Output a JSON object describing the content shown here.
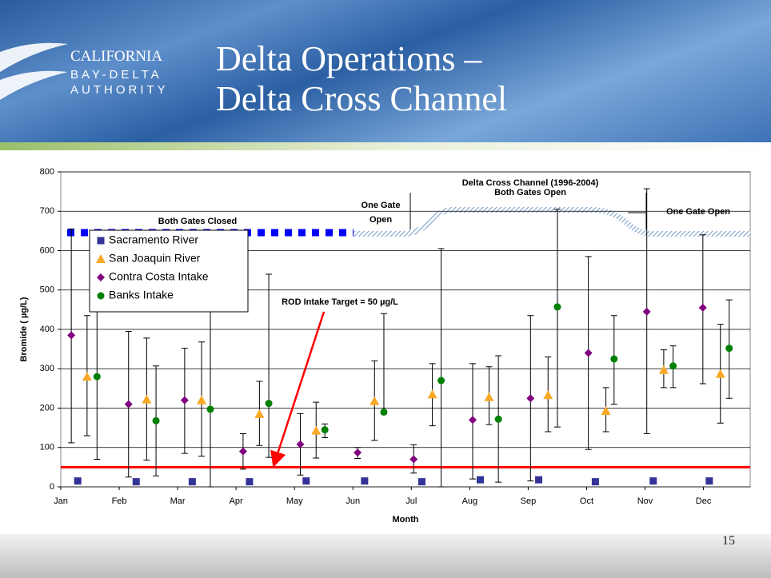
{
  "header": {
    "title_lines": [
      "Delta Operations –",
      "Delta Cross Channel"
    ],
    "logo": [
      "CALIFORNIA",
      "BAY-DELTA",
      "AUTHORITY"
    ]
  },
  "page_number": "15",
  "chart_data": {
    "type": "scatter",
    "xlabel": "Month",
    "ylabel": "Bromide ( µg/L)",
    "xlim": [
      0,
      11.8
    ],
    "ylim": [
      0,
      800
    ],
    "xticks": [
      {
        "value": 0,
        "label": "Jan"
      },
      {
        "value": 1,
        "label": "Feb"
      },
      {
        "value": 2,
        "label": "Mar"
      },
      {
        "value": 3,
        "label": "Apr"
      },
      {
        "value": 4,
        "label": "May"
      },
      {
        "value": 5,
        "label": "Jun"
      },
      {
        "value": 6,
        "label": "Jul"
      },
      {
        "value": 7,
        "label": "Aug"
      },
      {
        "value": 8,
        "label": "Sep"
      },
      {
        "value": 9,
        "label": "Oct"
      },
      {
        "value": 10,
        "label": "Nov"
      },
      {
        "value": 11,
        "label": "Dec"
      }
    ],
    "yticks": [
      0,
      100,
      200,
      300,
      400,
      500,
      600,
      700,
      800
    ],
    "grid": true,
    "series": [
      {
        "name": "Sacramento River",
        "color": "#333399",
        "marker": "square",
        "x": [
          0.29,
          1.29,
          2.25,
          3.23,
          4.2,
          5.2,
          6.18,
          7.18,
          8.18,
          9.15,
          10.14,
          11.1
        ],
        "values": [
          15,
          13,
          13,
          13,
          15,
          15,
          13,
          18,
          18,
          13,
          15,
          15
        ]
      },
      {
        "name": "San Joaquin River",
        "color": "#f9a825",
        "marker": "triangle",
        "x": [
          0.45,
          1.47,
          2.41,
          3.4,
          4.37,
          5.37,
          6.36,
          7.33,
          8.34,
          9.33,
          10.32,
          11.29
        ],
        "values": [
          280,
          222,
          220,
          185,
          143,
          218,
          235,
          228,
          233,
          193,
          297,
          287
        ],
        "low": [
          130,
          68,
          78,
          105,
          73,
          118,
          155,
          158,
          140,
          140,
          252,
          162
        ],
        "high": [
          435,
          378,
          368,
          268,
          215,
          320,
          313,
          305,
          330,
          252,
          348,
          413
        ]
      },
      {
        "name": "Contra Costa Intake",
        "color": "#800080",
        "marker": "diamond",
        "x": [
          0.18,
          1.16,
          2.12,
          3.12,
          4.1,
          5.08,
          6.04,
          7.05,
          8.04,
          9.03,
          10.03,
          10.99
        ],
        "values": [
          385,
          210,
          220,
          90,
          108,
          87,
          70,
          170,
          225,
          340,
          445,
          455
        ],
        "low": [
          112,
          25,
          85,
          45,
          30,
          72,
          35,
          20,
          15,
          95,
          135,
          262
        ],
        "high": [
          655,
          395,
          352,
          135,
          186,
          100,
          107,
          313,
          435,
          585,
          757,
          640
        ]
      },
      {
        "name": "Banks Intake",
        "color": "#008000",
        "marker": "circle",
        "x": [
          0.62,
          1.63,
          2.56,
          3.56,
          4.52,
          5.53,
          6.51,
          7.49,
          8.5,
          9.47,
          10.48,
          11.44
        ],
        "values": [
          280,
          168,
          197,
          212,
          145,
          190,
          270,
          172,
          457,
          325,
          307,
          352
        ],
        "low": [
          70,
          28,
          0,
          75,
          125,
          185,
          0,
          12,
          152,
          210,
          252,
          225
        ],
        "high": [
          450,
          307,
          620,
          540,
          160,
          440,
          605,
          333,
          705,
          435,
          358,
          475
        ]
      }
    ],
    "target": {
      "value": 50,
      "label": "ROD Intake Target = 50 µg/L",
      "color": "#ff0000"
    },
    "annotations": [
      "Both Gates Closed",
      "One Gate",
      "Open",
      "Delta Cross Channel (1996-2004)",
      "Both Gates Open",
      "One Gate Open"
    ]
  }
}
